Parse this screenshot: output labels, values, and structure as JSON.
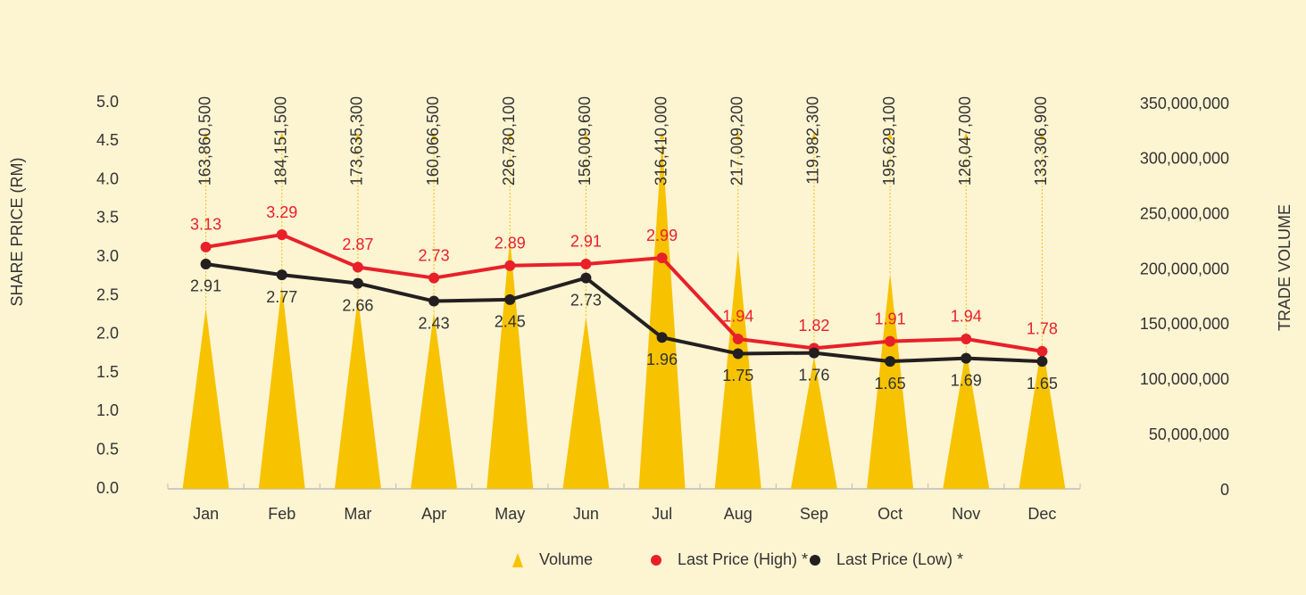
{
  "chart_data": {
    "type": "combo",
    "y_label": "SHARE PRICE (RM)",
    "y2_label": "TRADE VOLUME",
    "categories": [
      "Jan",
      "Feb",
      "Mar",
      "Apr",
      "May",
      "Jun",
      "Jul",
      "Aug",
      "Sep",
      "Oct",
      "Nov",
      "Dec"
    ],
    "ylim": [
      0,
      5
    ],
    "yticks": [
      {
        "value": 0,
        "label": "0.0"
      },
      0.5,
      {
        "value": 1,
        "label": "1.0"
      },
      1.5,
      {
        "value": 2,
        "label": "2.0"
      },
      2.5,
      {
        "value": 3,
        "label": "3.0"
      },
      3.5,
      {
        "value": 4,
        "label": "4.0"
      },
      4.5,
      {
        "value": 5,
        "label": "5.0"
      }
    ],
    "y2lim": [
      0,
      350000000
    ],
    "y2ticks": [
      0,
      {
        "value": 50000000,
        "label": "50,000,000"
      },
      {
        "value": 100000000,
        "label": "100,000,000"
      },
      {
        "value": 150000000,
        "label": "150,000,000"
      },
      {
        "value": 200000000,
        "label": "200,000,000"
      },
      {
        "value": 250000000,
        "label": "250,000,000"
      },
      {
        "value": 300000000,
        "label": "300,000,000"
      },
      {
        "value": 350000000,
        "label": "350,000,000"
      }
    ],
    "legend": "bottom",
    "series": [
      {
        "name": "Volume",
        "type": "triangle",
        "axis": "y2",
        "color": "#f7c300",
        "values": [
          163860500,
          184151500,
          173635300,
          160066500,
          226780100,
          156009600,
          316410000,
          217009200,
          119982300,
          195629100,
          126047000,
          133306900
        ],
        "value_labels": [
          "163,860,500",
          "184,151,500",
          "173,635,300",
          "160,066,500",
          "226,780,100",
          "156,009,600",
          "316,410,000",
          "217,009,200",
          "119,982,300",
          "195,629,100",
          "126,047,000",
          "133,306,900"
        ]
      },
      {
        "name": "Last Price (High) *",
        "type": "line",
        "color": "#e8202a",
        "label_pos": "above",
        "values": [
          3.13,
          3.29,
          2.87,
          2.73,
          2.89,
          2.91,
          2.99,
          1.94,
          1.82,
          1.91,
          1.94,
          1.78
        ]
      },
      {
        "name": "Last Price (Low) *",
        "type": "line",
        "color": "#231f20",
        "label_pos": "below",
        "values": [
          2.91,
          2.77,
          2.66,
          2.43,
          2.45,
          2.73,
          1.96,
          1.75,
          1.76,
          1.65,
          1.69,
          1.65
        ]
      }
    ]
  }
}
